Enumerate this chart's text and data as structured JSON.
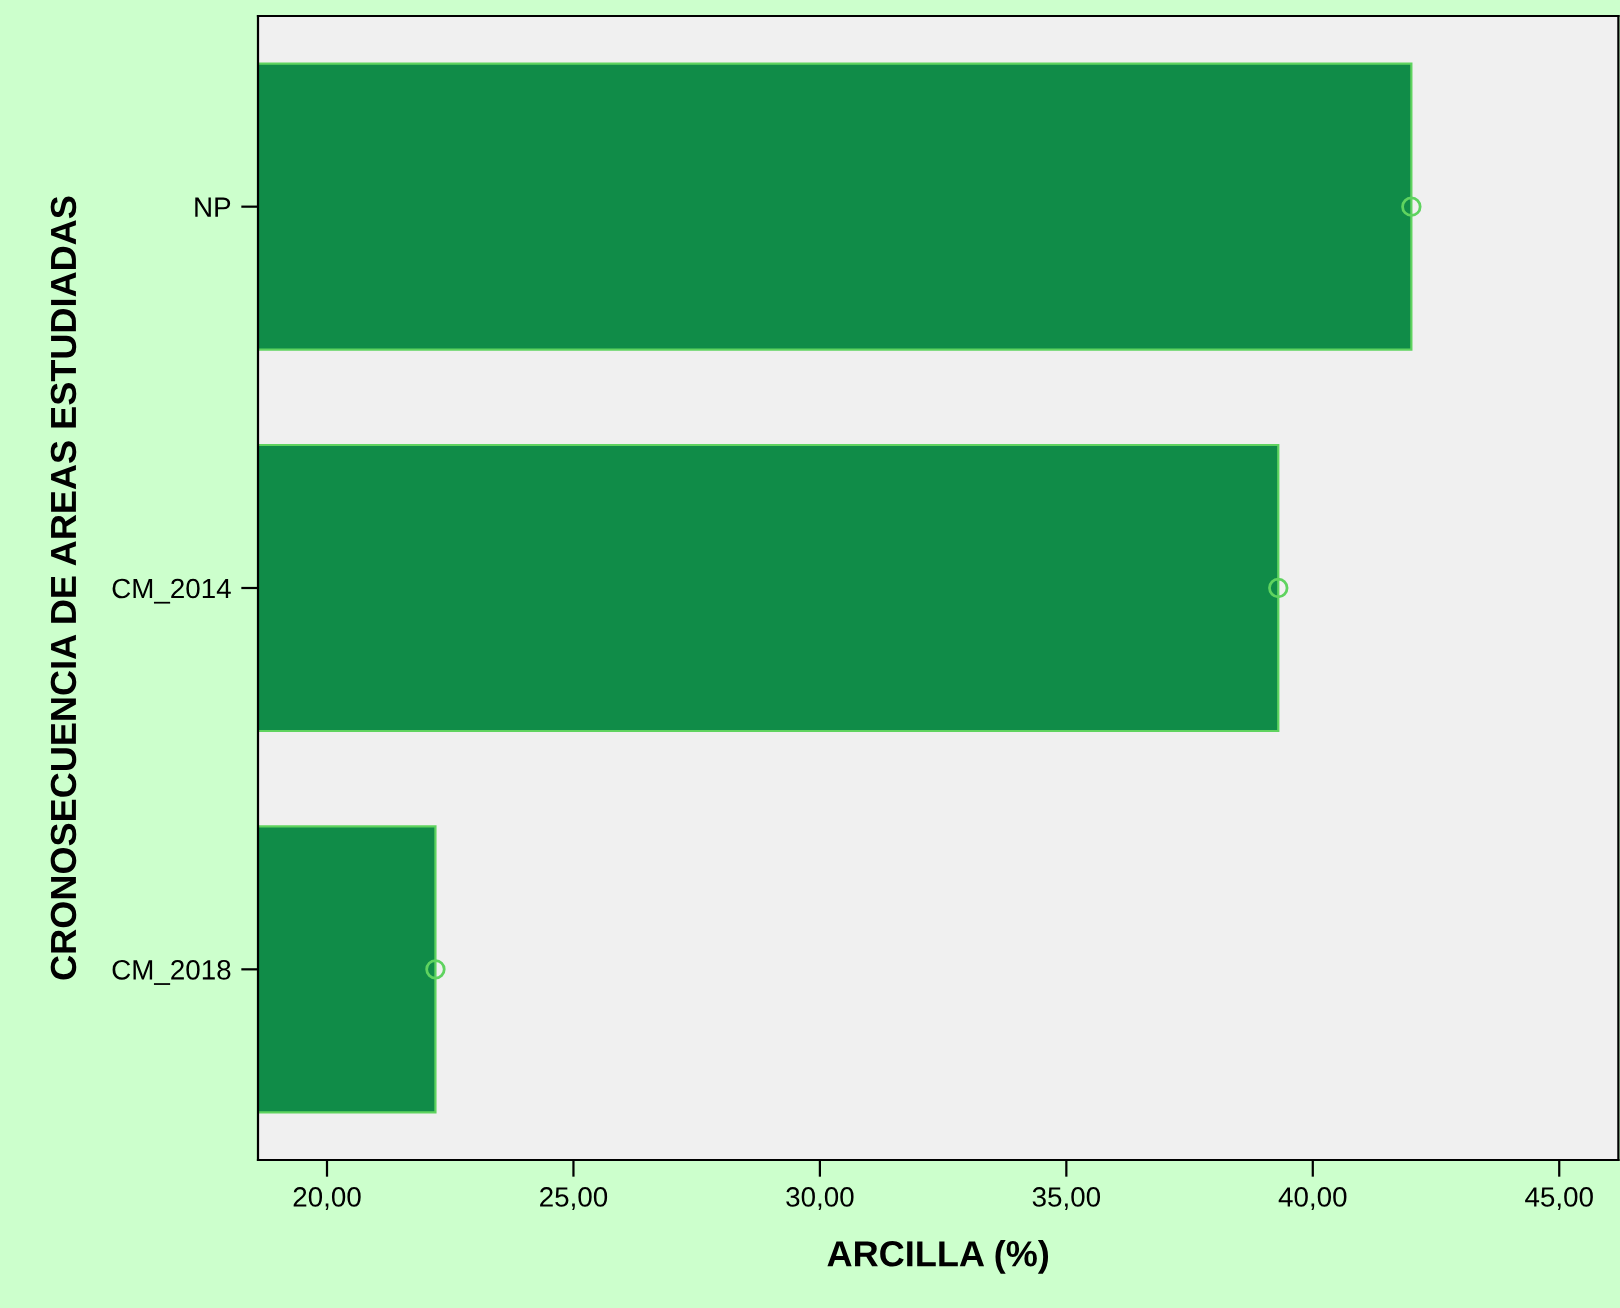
{
  "chart_data": {
    "type": "bar",
    "orientation": "horizontal",
    "xlabel": "ARCILLA (%)",
    "ylabel": "CRONOSECUENCIA DE AREAS ESTUDIADAS",
    "categories": [
      "NP",
      "CM_2014",
      "CM_2018"
    ],
    "series": [
      {
        "color": "#108c48",
        "values": [
          42.0,
          39.3,
          22.2
        ]
      },
      {
        "type": "scatter",
        "color": "#5fd35f",
        "marker": "circle",
        "values": [
          42.0,
          39.3,
          22.2
        ]
      }
    ],
    "xlim": [
      18.6,
      46.2
    ],
    "xticks": [
      {
        "value": 20,
        "label": "20,00"
      },
      {
        "value": 25,
        "label": "25,00"
      },
      {
        "value": 30,
        "label": "30,00"
      },
      {
        "value": 35,
        "label": "35,00"
      },
      {
        "value": 40,
        "label": "40,00"
      },
      {
        "value": 45,
        "label": "45,00"
      }
    ],
    "grid": false,
    "legend": false
  }
}
